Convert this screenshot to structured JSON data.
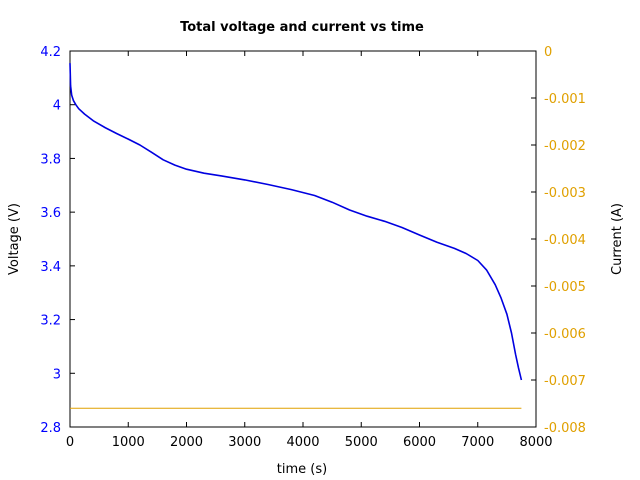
{
  "chart_data": {
    "type": "line",
    "title": "Total voltage and current vs time",
    "xlabel": "time (s)",
    "ylabel_left": "Voltage (V)",
    "ylabel_right": "Current (A)",
    "xlim": [
      0,
      8000
    ],
    "ylim_left": [
      2.8,
      4.2
    ],
    "ylim_right": [
      -0.008,
      0
    ],
    "x_ticks": [
      "0",
      "1000",
      "2000",
      "3000",
      "4000",
      "5000",
      "6000",
      "7000",
      "8000"
    ],
    "y_left_ticks": [
      "2.8",
      "3",
      "3.2",
      "3.4",
      "3.6",
      "3.8",
      "4",
      "4.2"
    ],
    "y_right_ticks": [
      "-0.008",
      "-0.007",
      "-0.006",
      "-0.005",
      "-0.004",
      "-0.003",
      "-0.002",
      "-0.001",
      "0"
    ],
    "grid": false,
    "colors": {
      "voltage": "#0000e0",
      "current": "#e0a000",
      "left_axis_text": "#0000ff",
      "right_axis_text": "#e0a000"
    },
    "series": [
      {
        "axis": "left",
        "x": [
          0,
          10,
          30,
          60,
          100,
          150,
          250,
          400,
          600,
          800,
          1000,
          1200,
          1400,
          1600,
          1800,
          2000,
          2300,
          2600,
          3000,
          3400,
          3800,
          4200,
          4500,
          4800,
          5100,
          5400,
          5700,
          6000,
          6300,
          6600,
          6800,
          7000,
          7150,
          7300,
          7400,
          7500,
          7580,
          7650,
          7700,
          7750
        ],
        "y": [
          4.155,
          4.07,
          4.035,
          4.015,
          4.0,
          3.985,
          3.965,
          3.94,
          3.915,
          3.893,
          3.872,
          3.85,
          3.823,
          3.795,
          3.775,
          3.76,
          3.745,
          3.735,
          3.72,
          3.703,
          3.684,
          3.662,
          3.637,
          3.608,
          3.585,
          3.566,
          3.543,
          3.515,
          3.488,
          3.465,
          3.446,
          3.42,
          3.385,
          3.33,
          3.28,
          3.22,
          3.15,
          3.07,
          3.02,
          2.975
        ]
      },
      {
        "axis": "right",
        "x": [
          0,
          7750
        ],
        "y": [
          -0.0076,
          -0.0076
        ]
      }
    ]
  }
}
